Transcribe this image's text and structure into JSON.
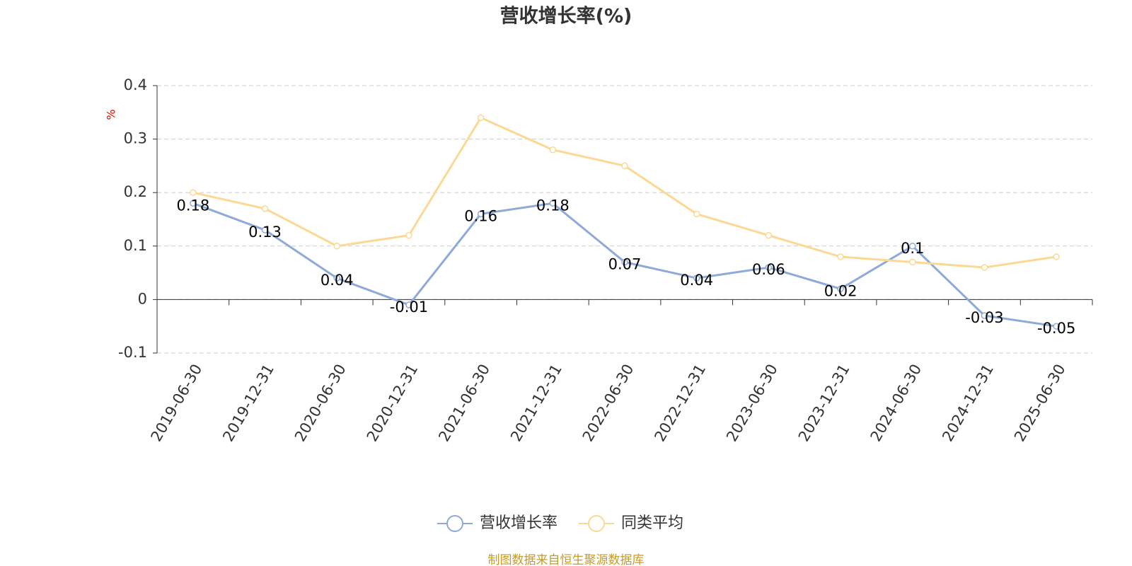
{
  "chart_data": {
    "type": "line",
    "title": "营收增长率(%)",
    "y_label": "%",
    "categories": [
      "2019-06-30",
      "2019-12-31",
      "2020-06-30",
      "2020-12-31",
      "2021-06-30",
      "2021-12-31",
      "2022-06-30",
      "2022-12-31",
      "2023-06-30",
      "2023-12-31",
      "2024-06-30",
      "2024-12-31",
      "2025-06-30"
    ],
    "series": [
      {
        "name": "营收增长率",
        "color": "#8eaad8",
        "values": [
          0.18,
          0.13,
          0.04,
          -0.01,
          0.16,
          0.18,
          0.07,
          0.04,
          0.06,
          0.02,
          0.1,
          -0.03,
          -0.05
        ],
        "show_labels": true
      },
      {
        "name": "同类平均",
        "color": "#fbd994",
        "values": [
          0.2,
          0.17,
          0.1,
          0.12,
          0.34,
          0.28,
          0.25,
          0.16,
          0.12,
          0.08,
          0.07,
          0.06,
          0.08
        ],
        "show_labels": false
      }
    ],
    "ylim": [
      -0.1,
      0.4
    ],
    "yticks": [
      -0.1,
      0,
      0.1,
      0.2,
      0.3,
      0.4
    ],
    "grid": true,
    "legend": "bottom",
    "source": "制图数据来自恒生聚源数据库"
  }
}
